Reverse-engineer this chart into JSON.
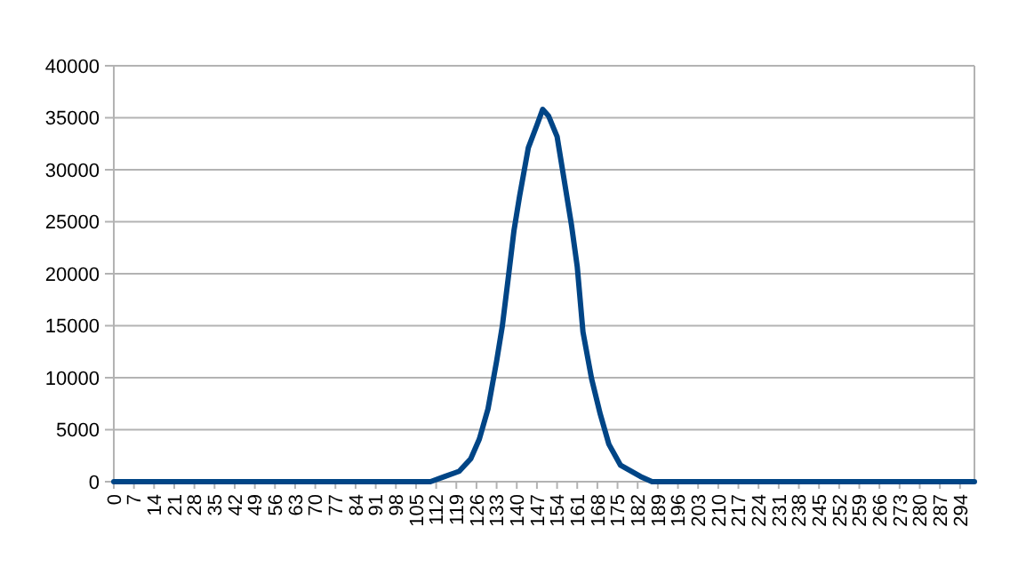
{
  "chart_data": {
    "type": "line",
    "x": [
      0,
      110,
      115,
      120,
      124,
      127,
      130,
      133,
      135,
      137,
      139,
      141,
      144,
      147,
      149,
      151,
      154,
      156,
      159,
      161,
      163,
      166,
      169,
      172,
      176,
      183,
      187,
      299
    ],
    "series": [
      {
        "color": "#004586",
        "values": [
          0,
          0,
          500,
          1000,
          2200,
          4100,
          7000,
          11600,
          15000,
          19500,
          24100,
          27500,
          32100,
          34300,
          35800,
          35200,
          33200,
          29800,
          24700,
          20700,
          14400,
          9900,
          6500,
          3600,
          1600,
          500,
          0,
          0
        ]
      }
    ],
    "xlim": [
      0,
      299
    ],
    "xticks": [
      0,
      7,
      14,
      21,
      28,
      35,
      42,
      49,
      56,
      63,
      70,
      77,
      84,
      91,
      98,
      105,
      112,
      119,
      126,
      133,
      140,
      147,
      154,
      161,
      168,
      175,
      182,
      189,
      196,
      203,
      210,
      217,
      224,
      231,
      238,
      245,
      252,
      259,
      266,
      273,
      280,
      287,
      294
    ],
    "ylim": [
      0,
      40000
    ],
    "yticks": [
      0,
      5000,
      10000,
      15000,
      20000,
      25000,
      30000,
      35000,
      40000
    ],
    "grid": "y",
    "line_style": "solid",
    "marker": "none"
  }
}
